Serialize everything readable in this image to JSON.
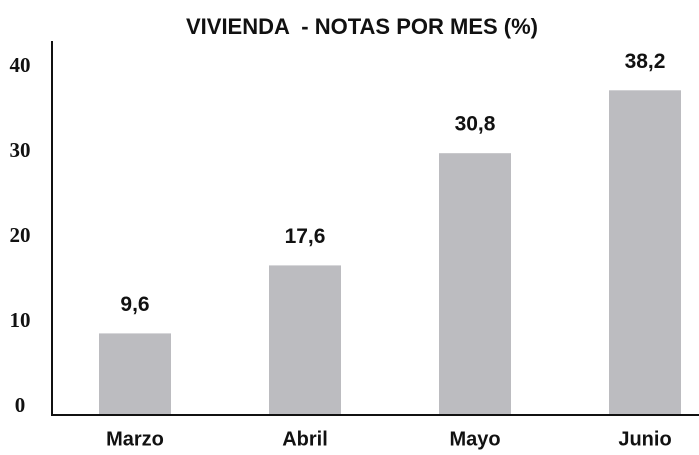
{
  "chart_data": {
    "type": "bar",
    "title": "VIVIENDA  - NOTAS POR MES (%)",
    "categories": [
      "Marzo",
      "Abril",
      "Mayo",
      "Junio"
    ],
    "values": [
      9.6,
      17.6,
      30.8,
      38.2
    ],
    "value_labels": [
      "9,6",
      "17,6",
      "30,8",
      "38,2"
    ],
    "color": "#bcbcc0",
    "ylim": [
      0,
      44
    ],
    "yticks": [
      0,
      10,
      20,
      30,
      40
    ],
    "grid": false
  }
}
